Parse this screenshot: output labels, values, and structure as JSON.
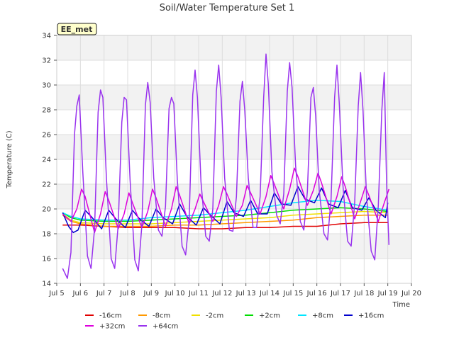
{
  "chart_data": {
    "type": "line",
    "title": "Soil/Water Temperature Set 1",
    "xlabel": "Time",
    "ylabel": "Temperature (C)",
    "station_badge": "EE_met",
    "xlim": [
      5,
      20
    ],
    "ylim": [
      14,
      34
    ],
    "x_ticks": [
      5,
      6,
      7,
      8,
      9,
      10,
      11,
      12,
      13,
      14,
      15,
      16,
      17,
      18,
      19,
      20
    ],
    "x_tick_labels": [
      "Jul 5",
      "Jul 6",
      "Jul 7",
      "Jul 8",
      "Jul 9",
      "Jul 10",
      "Jul 11",
      "Jul 12",
      "Jul 13",
      "Jul 14",
      "Jul 15",
      "Jul 16",
      "Jul 17",
      "Jul 18",
      "Jul 19",
      "Jul 20"
    ],
    "y_ticks": [
      14,
      16,
      18,
      20,
      22,
      24,
      26,
      28,
      30,
      32,
      34
    ],
    "grid": true,
    "legend_position": "bottom",
    "series": [
      {
        "name": "-16cm",
        "color": "#e00000",
        "x": [
          5.25,
          6,
          7,
          8,
          9,
          10,
          11,
          12,
          13,
          14,
          15,
          16,
          17,
          18,
          19
        ],
        "y": [
          18.7,
          18.7,
          18.6,
          18.5,
          18.5,
          18.5,
          18.4,
          18.4,
          18.5,
          18.5,
          18.6,
          18.6,
          18.8,
          18.9,
          18.9
        ]
      },
      {
        "name": "-8cm",
        "color": "#ff9900",
        "x": [
          5.25,
          5.6,
          6,
          7,
          8,
          9,
          10,
          11,
          12,
          13,
          14,
          15,
          16,
          17,
          18,
          19
        ],
        "y": [
          19.5,
          19.0,
          18.8,
          18.6,
          18.6,
          18.6,
          18.7,
          18.7,
          18.8,
          18.9,
          19.0,
          19.1,
          19.3,
          19.4,
          19.5,
          19.5
        ]
      },
      {
        "name": "-2cm",
        "color": "#f0e000",
        "x": [
          5.25,
          5.6,
          6,
          7,
          8,
          9,
          10,
          11,
          12,
          13,
          14,
          15,
          16,
          17,
          18,
          19
        ],
        "y": [
          19.6,
          19.1,
          18.9,
          18.8,
          18.8,
          18.8,
          18.9,
          19.0,
          19.1,
          19.2,
          19.3,
          19.5,
          19.6,
          19.7,
          19.8,
          19.7
        ]
      },
      {
        "name": "+2cm",
        "color": "#00dd00",
        "x": [
          5.25,
          5.6,
          6,
          7,
          8,
          9,
          10,
          11,
          12,
          13,
          14,
          15,
          16,
          17,
          18,
          19
        ],
        "y": [
          19.7,
          19.3,
          19.1,
          19.0,
          19.0,
          19.1,
          19.2,
          19.3,
          19.4,
          19.5,
          19.7,
          19.9,
          20.0,
          20.1,
          20.0,
          19.8
        ]
      },
      {
        "name": "+8cm",
        "color": "#00e5ff",
        "x": [
          5.25,
          5.6,
          6,
          7,
          8,
          9,
          10,
          11,
          12,
          13,
          14,
          15,
          16,
          17,
          18,
          19
        ],
        "y": [
          19.7,
          19.4,
          19.2,
          19.1,
          19.1,
          19.3,
          19.4,
          19.5,
          19.7,
          19.9,
          20.2,
          20.5,
          20.7,
          20.6,
          20.2,
          19.9
        ]
      },
      {
        "name": "+16cm",
        "color": "#0000cc",
        "x": [
          5.25,
          5.5,
          5.7,
          5.9,
          6.2,
          6.5,
          6.9,
          7.2,
          7.5,
          7.9,
          8.2,
          8.5,
          8.9,
          9.2,
          9.5,
          9.9,
          10.2,
          10.5,
          10.9,
          11.2,
          11.5,
          11.9,
          12.2,
          12.5,
          12.9,
          13.2,
          13.5,
          13.9,
          14.2,
          14.5,
          14.9,
          15.2,
          15.5,
          15.9,
          16.2,
          16.5,
          16.9,
          17.2,
          17.5,
          17.9,
          18.2,
          18.5,
          18.9,
          19.0
        ],
        "y": [
          19.7,
          18.6,
          18.1,
          18.3,
          19.9,
          19.3,
          18.4,
          19.9,
          19.2,
          18.5,
          19.9,
          19.2,
          18.6,
          20.0,
          19.3,
          18.8,
          20.4,
          19.4,
          18.7,
          20.1,
          19.5,
          18.8,
          20.6,
          19.7,
          19.4,
          20.7,
          19.6,
          19.6,
          21.3,
          20.4,
          20.3,
          21.8,
          20.8,
          20.5,
          21.7,
          20.4,
          20.1,
          21.5,
          20.1,
          19.9,
          20.9,
          19.9,
          19.3,
          20.5
        ]
      },
      {
        "name": "+32cm",
        "color": "#dd00dd",
        "x": [
          5.25,
          5.6,
          5.85,
          6.05,
          6.2,
          6.6,
          6.85,
          7.05,
          7.2,
          7.6,
          7.85,
          8.05,
          8.2,
          8.6,
          8.85,
          9.05,
          9.2,
          9.6,
          9.85,
          10.05,
          10.2,
          10.6,
          10.85,
          11.05,
          11.2,
          11.6,
          11.85,
          12.05,
          12.2,
          12.6,
          12.85,
          13.05,
          13.2,
          13.6,
          13.85,
          14.05,
          14.2,
          14.6,
          14.85,
          15.05,
          15.2,
          15.6,
          15.85,
          16.05,
          16.2,
          16.6,
          16.85,
          17.05,
          17.2,
          17.6,
          17.85,
          18.05,
          18.2,
          18.6,
          18.85,
          19.05
        ],
        "y": [
          19.6,
          19.0,
          20.0,
          21.6,
          21.0,
          18.1,
          19.6,
          21.4,
          20.7,
          18.4,
          19.6,
          21.3,
          20.5,
          18.5,
          19.8,
          21.6,
          20.9,
          18.6,
          20.0,
          21.8,
          21.1,
          18.8,
          20.0,
          21.2,
          20.6,
          19.0,
          20.3,
          21.8,
          21.2,
          19.4,
          20.3,
          21.9,
          21.3,
          19.6,
          21.0,
          22.7,
          22.0,
          20.0,
          21.6,
          23.3,
          22.6,
          20.3,
          21.5,
          22.9,
          22.1,
          19.6,
          21.0,
          22.6,
          21.8,
          19.2,
          20.6,
          21.8,
          21.1,
          19.0,
          20.5,
          21.6
        ]
      },
      {
        "name": "+64cm",
        "color": "#9933ee",
        "x": [
          5.25,
          5.45,
          5.6,
          5.75,
          5.85,
          5.95,
          6.1,
          6.3,
          6.45,
          6.6,
          6.75,
          6.85,
          6.95,
          7.1,
          7.3,
          7.45,
          7.6,
          7.75,
          7.85,
          7.95,
          8.1,
          8.3,
          8.45,
          8.6,
          8.75,
          8.85,
          8.95,
          9.1,
          9.3,
          9.45,
          9.6,
          9.75,
          9.85,
          9.95,
          10.1,
          10.3,
          10.45,
          10.6,
          10.75,
          10.85,
          10.95,
          11.1,
          11.3,
          11.45,
          11.6,
          11.75,
          11.85,
          11.95,
          12.1,
          12.3,
          12.45,
          12.6,
          12.75,
          12.85,
          12.95,
          13.1,
          13.3,
          13.45,
          13.6,
          13.75,
          13.85,
          13.95,
          14.1,
          14.3,
          14.45,
          14.6,
          14.75,
          14.85,
          14.95,
          15.1,
          15.3,
          15.45,
          15.6,
          15.75,
          15.85,
          15.95,
          16.1,
          16.3,
          16.45,
          16.6,
          16.75,
          16.85,
          16.95,
          17.1,
          17.3,
          17.45,
          17.6,
          17.75,
          17.85,
          17.95,
          18.1,
          18.3,
          18.45,
          18.6,
          18.75,
          18.85,
          18.95,
          19.05
        ],
        "y": [
          15.2,
          14.4,
          16.5,
          26.0,
          28.3,
          29.2,
          23.0,
          16.2,
          15.2,
          18.4,
          27.8,
          29.6,
          29.0,
          22.5,
          16.0,
          15.2,
          18.8,
          27.0,
          29.0,
          28.8,
          22.4,
          15.9,
          15.0,
          18.7,
          28.4,
          30.2,
          28.6,
          22.5,
          18.3,
          17.8,
          20.2,
          28.1,
          29.0,
          28.5,
          22.3,
          17.0,
          16.3,
          19.2,
          29.2,
          31.2,
          29.0,
          22.2,
          17.8,
          17.4,
          20.0,
          29.5,
          31.6,
          29.0,
          22.5,
          18.3,
          18.2,
          21.0,
          28.7,
          30.3,
          28.0,
          22.5,
          18.5,
          18.5,
          21.0,
          29.0,
          32.5,
          30.0,
          23.0,
          19.5,
          18.8,
          21.2,
          29.5,
          31.8,
          29.8,
          23.5,
          19.0,
          18.3,
          21.4,
          29.0,
          29.8,
          27.5,
          21.5,
          18.0,
          17.5,
          20.8,
          29.0,
          31.6,
          28.5,
          22.0,
          17.4,
          17.0,
          20.5,
          28.3,
          31.0,
          28.0,
          21.0,
          16.6,
          15.9,
          20.3,
          28.0,
          31.0,
          22.0,
          17.1
        ]
      }
    ]
  }
}
